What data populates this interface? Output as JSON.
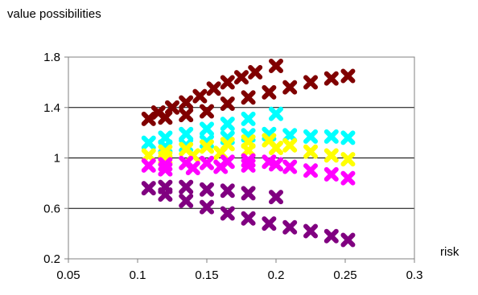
{
  "chart_data": {
    "type": "scatter",
    "title": "value possibilities",
    "xlabel": "risk",
    "ylabel": "",
    "xlim": [
      0.05,
      0.3
    ],
    "ylim": [
      0.2,
      1.8
    ],
    "x_ticks": [
      "0.05",
      "0.1",
      "0.15",
      "0.2",
      "0.25",
      "0.3"
    ],
    "y_ticks": [
      "0.2",
      "0.6",
      "1",
      "1.4",
      "1.8"
    ],
    "grid": "horizontal major gridlines",
    "legend": "none",
    "series": [
      {
        "color": "#800000",
        "marker": "x",
        "values": [
          {
            "x": 0.108,
            "y": 1.31
          },
          {
            "x": 0.115,
            "y": 1.36
          },
          {
            "x": 0.125,
            "y": 1.4
          },
          {
            "x": 0.135,
            "y": 1.44
          },
          {
            "x": 0.145,
            "y": 1.49
          },
          {
            "x": 0.155,
            "y": 1.55
          },
          {
            "x": 0.165,
            "y": 1.6
          },
          {
            "x": 0.175,
            "y": 1.64
          },
          {
            "x": 0.185,
            "y": 1.68
          },
          {
            "x": 0.2,
            "y": 1.73
          },
          {
            "x": 0.12,
            "y": 1.32
          },
          {
            "x": 0.135,
            "y": 1.34
          },
          {
            "x": 0.15,
            "y": 1.37
          },
          {
            "x": 0.165,
            "y": 1.43
          },
          {
            "x": 0.18,
            "y": 1.48
          },
          {
            "x": 0.195,
            "y": 1.52
          },
          {
            "x": 0.21,
            "y": 1.56
          },
          {
            "x": 0.225,
            "y": 1.6
          },
          {
            "x": 0.24,
            "y": 1.63
          },
          {
            "x": 0.252,
            "y": 1.65
          }
        ]
      },
      {
        "color": "#00ffff",
        "marker": "x",
        "values": [
          {
            "x": 0.108,
            "y": 1.12
          },
          {
            "x": 0.12,
            "y": 1.16
          },
          {
            "x": 0.135,
            "y": 1.19
          },
          {
            "x": 0.15,
            "y": 1.23
          },
          {
            "x": 0.165,
            "y": 1.27
          },
          {
            "x": 0.18,
            "y": 1.31
          },
          {
            "x": 0.2,
            "y": 1.35
          },
          {
            "x": 0.12,
            "y": 1.09
          },
          {
            "x": 0.135,
            "y": 1.1
          },
          {
            "x": 0.15,
            "y": 1.13
          },
          {
            "x": 0.165,
            "y": 1.16
          },
          {
            "x": 0.18,
            "y": 1.18
          },
          {
            "x": 0.195,
            "y": 1.19
          },
          {
            "x": 0.21,
            "y": 1.18
          },
          {
            "x": 0.225,
            "y": 1.17
          },
          {
            "x": 0.24,
            "y": 1.17
          },
          {
            "x": 0.252,
            "y": 1.16
          }
        ]
      },
      {
        "color": "#ffff00",
        "marker": "x",
        "values": [
          {
            "x": 0.108,
            "y": 1.02
          },
          {
            "x": 0.12,
            "y": 1.05
          },
          {
            "x": 0.135,
            "y": 1.07
          },
          {
            "x": 0.15,
            "y": 1.09
          },
          {
            "x": 0.165,
            "y": 1.11
          },
          {
            "x": 0.18,
            "y": 1.13
          },
          {
            "x": 0.195,
            "y": 1.14
          },
          {
            "x": 0.21,
            "y": 1.1
          },
          {
            "x": 0.225,
            "y": 1.05
          },
          {
            "x": 0.24,
            "y": 1.02
          },
          {
            "x": 0.252,
            "y": 0.99
          },
          {
            "x": 0.12,
            "y": 1.0
          },
          {
            "x": 0.14,
            "y": 1.02
          },
          {
            "x": 0.16,
            "y": 1.04
          },
          {
            "x": 0.18,
            "y": 1.06
          },
          {
            "x": 0.2,
            "y": 1.08
          }
        ]
      },
      {
        "color": "#ff00ff",
        "marker": "x",
        "values": [
          {
            "x": 0.108,
            "y": 0.94
          },
          {
            "x": 0.12,
            "y": 0.95
          },
          {
            "x": 0.135,
            "y": 0.96
          },
          {
            "x": 0.15,
            "y": 0.96
          },
          {
            "x": 0.165,
            "y": 0.97
          },
          {
            "x": 0.18,
            "y": 0.98
          },
          {
            "x": 0.195,
            "y": 0.97
          },
          {
            "x": 0.21,
            "y": 0.93
          },
          {
            "x": 0.225,
            "y": 0.9
          },
          {
            "x": 0.24,
            "y": 0.87
          },
          {
            "x": 0.252,
            "y": 0.84
          },
          {
            "x": 0.12,
            "y": 0.91
          },
          {
            "x": 0.14,
            "y": 0.92
          },
          {
            "x": 0.16,
            "y": 0.93
          },
          {
            "x": 0.18,
            "y": 0.94
          },
          {
            "x": 0.2,
            "y": 0.95
          }
        ]
      },
      {
        "color": "#800080",
        "marker": "x",
        "values": [
          {
            "x": 0.108,
            "y": 0.76
          },
          {
            "x": 0.12,
            "y": 0.77
          },
          {
            "x": 0.135,
            "y": 0.77
          },
          {
            "x": 0.15,
            "y": 0.75
          },
          {
            "x": 0.165,
            "y": 0.74
          },
          {
            "x": 0.18,
            "y": 0.72
          },
          {
            "x": 0.2,
            "y": 0.69
          },
          {
            "x": 0.12,
            "y": 0.71
          },
          {
            "x": 0.135,
            "y": 0.66
          },
          {
            "x": 0.15,
            "y": 0.61
          },
          {
            "x": 0.165,
            "y": 0.56
          },
          {
            "x": 0.18,
            "y": 0.52
          },
          {
            "x": 0.195,
            "y": 0.48
          },
          {
            "x": 0.21,
            "y": 0.45
          },
          {
            "x": 0.225,
            "y": 0.42
          },
          {
            "x": 0.24,
            "y": 0.38
          },
          {
            "x": 0.252,
            "y": 0.35
          }
        ]
      }
    ]
  }
}
